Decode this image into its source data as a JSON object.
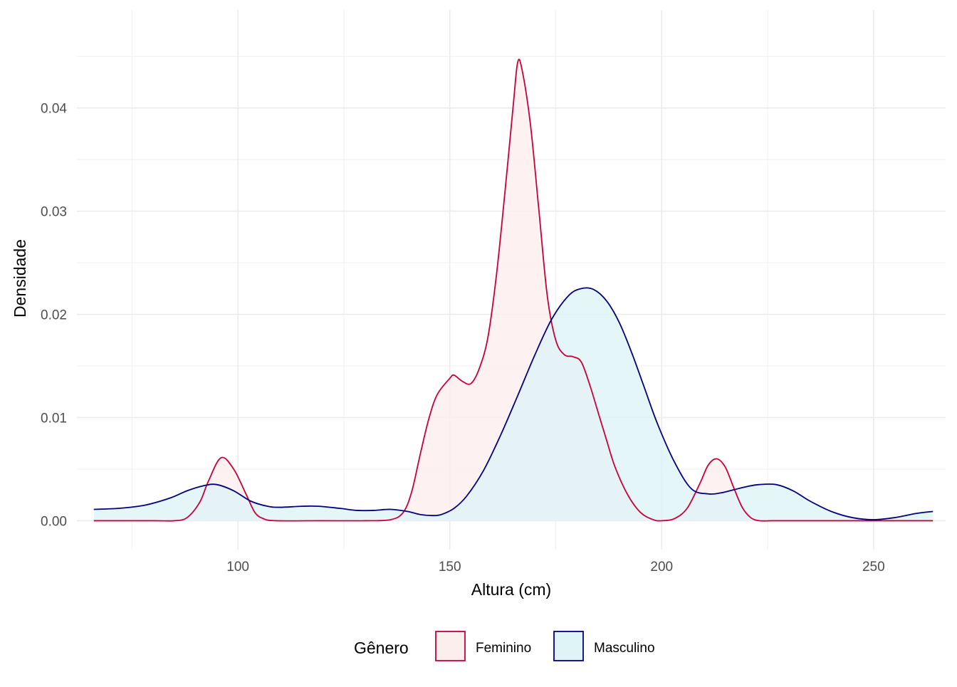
{
  "chart_data": {
    "type": "area",
    "title": "",
    "xlabel": "Altura (cm)",
    "ylabel": "Densidade",
    "xlim": [
      62,
      267
    ],
    "ylim": [
      -0.0028,
      0.0495
    ],
    "x_ticks": [
      100,
      150,
      200,
      250
    ],
    "x_tick_labels": [
      "100",
      "150",
      "200",
      "250"
    ],
    "y_ticks": [
      0.0,
      0.01,
      0.02,
      0.03,
      0.04
    ],
    "y_tick_labels": [
      "0.00",
      "0.01",
      "0.02",
      "0.03",
      "0.04"
    ],
    "grid": true,
    "legend": {
      "title": "Gênero",
      "position": "bottom"
    },
    "series": [
      {
        "name": "Feminino",
        "line_color": "#c8003a",
        "fill_color": "#fdeeee",
        "x": [
          66,
          80,
          85,
          88,
          91,
          93,
          96,
          99,
          102,
          104,
          106,
          109,
          120,
          130,
          136,
          139,
          141,
          143,
          145,
          147,
          150,
          151,
          153,
          155,
          157,
          159,
          161,
          163,
          165,
          166,
          167,
          169,
          171,
          173,
          175,
          177,
          179,
          181,
          183,
          185,
          187,
          189,
          192,
          195,
          198,
          200,
          203,
          206,
          209,
          211,
          213,
          215,
          217,
          219,
          221,
          223,
          226,
          230,
          240,
          264
        ],
        "y": [
          0,
          0,
          0,
          0.0003,
          0.0018,
          0.0038,
          0.0061,
          0.005,
          0.0025,
          0.0008,
          0.0002,
          0,
          0,
          0,
          0.0001,
          0.0008,
          0.0028,
          0.0064,
          0.0098,
          0.0122,
          0.0138,
          0.0141,
          0.0135,
          0.0133,
          0.0148,
          0.0178,
          0.0238,
          0.0318,
          0.0404,
          0.0444,
          0.0438,
          0.0385,
          0.0302,
          0.0218,
          0.0175,
          0.0161,
          0.0159,
          0.0154,
          0.0132,
          0.0105,
          0.0078,
          0.0052,
          0.0025,
          0.0008,
          0.0001,
          0,
          0.0002,
          0.0012,
          0.0036,
          0.0054,
          0.006,
          0.0052,
          0.0032,
          0.0013,
          0.0003,
          0,
          0,
          0,
          0,
          0
        ]
      },
      {
        "name": "Masculino",
        "line_color": "#000080",
        "fill_color": "#dff4f7",
        "x": [
          66,
          72,
          78,
          84,
          88,
          92,
          95,
          99,
          103,
          107,
          110,
          115,
          119,
          124,
          128,
          132,
          136,
          140,
          143,
          146,
          148,
          151,
          154,
          158,
          162,
          166,
          170,
          174,
          178,
          181,
          184,
          187,
          190,
          193,
          196,
          199,
          203,
          207,
          211,
          214,
          217,
          220,
          223,
          227,
          231,
          235,
          240,
          245,
          250,
          255,
          260,
          264
        ],
        "y": [
          0.0011,
          0.0012,
          0.0015,
          0.0022,
          0.0029,
          0.0034,
          0.0035,
          0.0029,
          0.0019,
          0.0014,
          0.0013,
          0.0014,
          0.0014,
          0.0012,
          0.001,
          0.001,
          0.0011,
          0.0009,
          0.0006,
          0.0005,
          0.0006,
          0.0012,
          0.0024,
          0.0049,
          0.0083,
          0.0121,
          0.016,
          0.0195,
          0.0218,
          0.0225,
          0.0224,
          0.0213,
          0.0192,
          0.0162,
          0.0128,
          0.0094,
          0.0057,
          0.0031,
          0.0026,
          0.0027,
          0.003,
          0.0033,
          0.0035,
          0.0035,
          0.0029,
          0.0019,
          0.0009,
          0.0003,
          0.0001,
          0.0003,
          0.0007,
          0.0009
        ]
      }
    ]
  }
}
